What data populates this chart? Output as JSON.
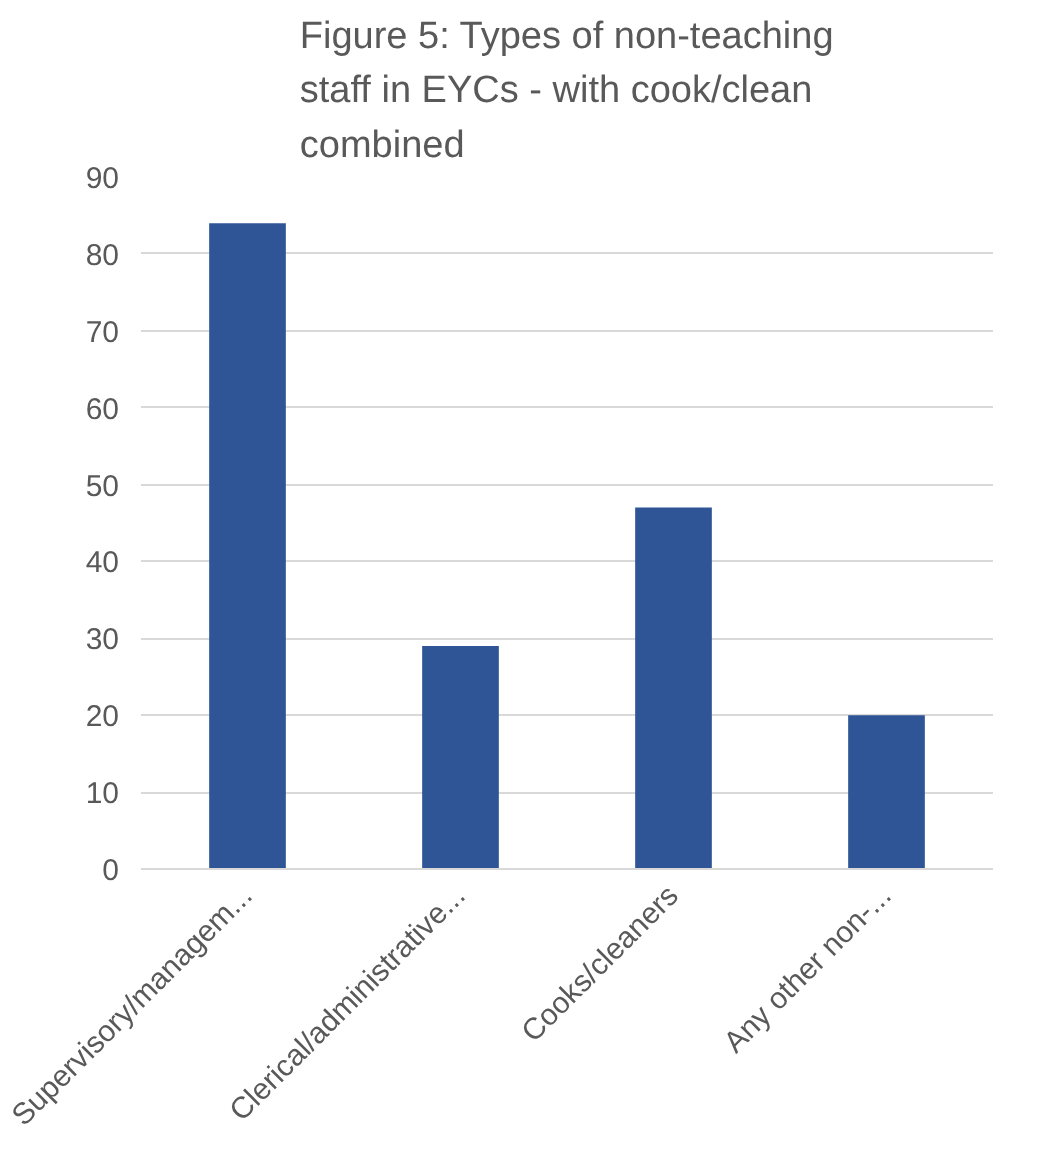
{
  "chart_data": {
    "type": "bar",
    "title": "Figure 5: Types of non-teaching staff in EYCs - with cook/clean combined",
    "categories": [
      "Supervisory/managem...",
      "Clerical/administrative...",
      "Cooks/cleaners",
      "Any other non-..."
    ],
    "values": [
      84,
      29,
      47,
      20
    ],
    "color": "#2f5597",
    "ylim": [
      0,
      90
    ],
    "yticks": [
      0,
      10,
      20,
      30,
      40,
      50,
      60,
      70,
      80,
      90
    ],
    "grid": "y"
  }
}
